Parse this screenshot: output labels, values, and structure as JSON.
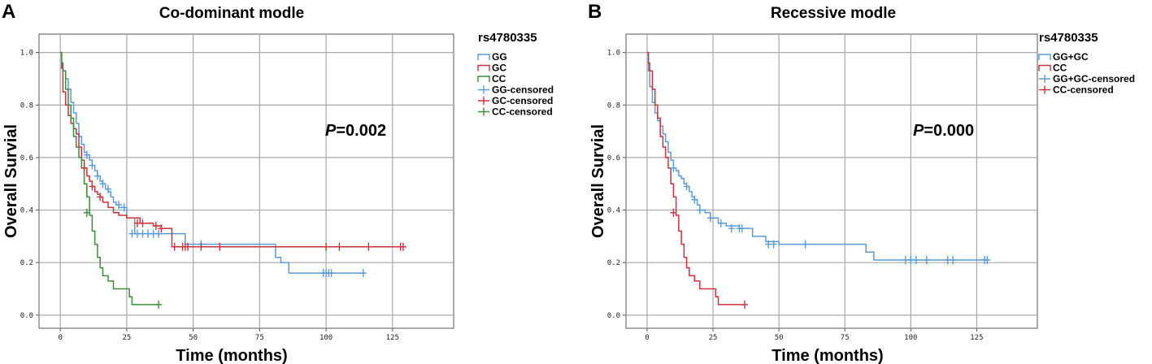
{
  "chart_data": [
    {
      "type": "line",
      "panel_letter": "A",
      "title": "Co-dominant modle",
      "xlabel": "Time (months)",
      "ylabel": "Overall Survial",
      "xlim": [
        -8,
        148
      ],
      "ylim": [
        -0.05,
        1.07
      ],
      "xticks": [
        0,
        25,
        50,
        75,
        100,
        125
      ],
      "xtick_labels": [
        "0",
        "25",
        "50",
        "75",
        "100",
        "125"
      ],
      "yticks": [
        0.0,
        0.2,
        0.4,
        0.6,
        0.8,
        1.0
      ],
      "ytick_labels": [
        "0.0",
        "0.2",
        "0.4",
        "0.6",
        "0.8",
        "1.0"
      ],
      "grid": true,
      "legend_title": "rs4780335",
      "legend_position": "right",
      "annotation": {
        "prefix": "P",
        "text": "=0.002"
      },
      "series": [
        {
          "name": "GG",
          "color": "#5b9bd5",
          "x": [
            0,
            0.5,
            1,
            2,
            3,
            4,
            5,
            6,
            7,
            8,
            9,
            10,
            11,
            12,
            13,
            14,
            15,
            16,
            17,
            18,
            19,
            20,
            21,
            22,
            25,
            28,
            35,
            47,
            60,
            70,
            81,
            83,
            86,
            114
          ],
          "y": [
            1.0,
            0.96,
            0.93,
            0.9,
            0.86,
            0.81,
            0.77,
            0.73,
            0.68,
            0.65,
            0.62,
            0.61,
            0.59,
            0.57,
            0.55,
            0.53,
            0.51,
            0.5,
            0.48,
            0.47,
            0.45,
            0.43,
            0.42,
            0.41,
            0.37,
            0.31,
            0.31,
            0.27,
            0.27,
            0.27,
            0.22,
            0.2,
            0.16,
            0.16
          ]
        },
        {
          "name": "GC",
          "color": "#c8323c",
          "x": [
            0,
            0.5,
            1,
            2,
            3,
            4,
            5,
            6,
            7,
            8,
            9,
            10,
            11,
            12,
            13,
            14,
            15,
            16,
            18,
            20,
            22,
            25,
            30,
            35,
            38,
            42,
            130
          ],
          "y": [
            1.0,
            0.94,
            0.85,
            0.8,
            0.76,
            0.73,
            0.71,
            0.69,
            0.64,
            0.59,
            0.56,
            0.53,
            0.51,
            0.49,
            0.47,
            0.46,
            0.45,
            0.43,
            0.41,
            0.39,
            0.38,
            0.37,
            0.35,
            0.34,
            0.33,
            0.26,
            0.26
          ]
        },
        {
          "name": "CC",
          "color": "#3c8c3c",
          "x": [
            0,
            0.5,
            1,
            2,
            3,
            4,
            5,
            6,
            7,
            8,
            9,
            10,
            11,
            12,
            13,
            14,
            15,
            16,
            18,
            20,
            22,
            26,
            27,
            37
          ],
          "y": [
            1.0,
            0.96,
            0.93,
            0.86,
            0.8,
            0.75,
            0.68,
            0.64,
            0.6,
            0.56,
            0.5,
            0.45,
            0.38,
            0.32,
            0.27,
            0.22,
            0.18,
            0.15,
            0.13,
            0.1,
            0.1,
            0.07,
            0.04,
            0.04
          ]
        },
        {
          "name": "GG-censored",
          "color": "#5b9bd5",
          "marker": "+",
          "x": [
            10,
            12,
            14,
            16,
            18,
            22,
            24,
            27,
            29,
            31,
            33,
            35,
            37,
            53,
            99,
            100,
            101,
            102,
            114
          ],
          "y": [
            0.61,
            0.57,
            0.53,
            0.5,
            0.48,
            0.42,
            0.41,
            0.31,
            0.31,
            0.31,
            0.31,
            0.31,
            0.31,
            0.27,
            0.16,
            0.16,
            0.16,
            0.16,
            0.16
          ]
        },
        {
          "name": "GC-censored",
          "color": "#c8323c",
          "marker": "+",
          "x": [
            9,
            12,
            15,
            29,
            31,
            36,
            38,
            43,
            46,
            47,
            48,
            53,
            60,
            100,
            105,
            116,
            128,
            129
          ],
          "y": [
            0.56,
            0.49,
            0.45,
            0.35,
            0.35,
            0.34,
            0.33,
            0.26,
            0.26,
            0.26,
            0.26,
            0.26,
            0.26,
            0.26,
            0.26,
            0.26,
            0.26,
            0.26
          ]
        },
        {
          "name": "CC-censored",
          "color": "#3c8c3c",
          "marker": "+",
          "x": [
            10,
            37
          ],
          "y": [
            0.39,
            0.04
          ]
        }
      ]
    },
    {
      "type": "line",
      "panel_letter": "B",
      "title": "Recessive modle",
      "xlabel": "Time (months)",
      "ylabel": "Overall Survial",
      "xlim": [
        -8,
        148
      ],
      "ylim": [
        -0.05,
        1.07
      ],
      "xticks": [
        0,
        25,
        50,
        75,
        100,
        125
      ],
      "xtick_labels": [
        "0",
        "25",
        "50",
        "75",
        "100",
        "125"
      ],
      "yticks": [
        0.0,
        0.2,
        0.4,
        0.6,
        0.8,
        1.0
      ],
      "ytick_labels": [
        "0.0",
        "0.2",
        "0.4",
        "0.6",
        "0.8",
        "1.0"
      ],
      "grid": true,
      "legend_title": "rs4780335",
      "legend_position": "right",
      "annotation": {
        "prefix": "P",
        "text": "=0.000"
      },
      "series": [
        {
          "name": "GG+GC",
          "color": "#5b9bd5",
          "x": [
            0,
            0.5,
            1,
            2,
            3,
            4,
            5,
            6,
            7,
            8,
            9,
            10,
            11,
            12,
            13,
            14,
            15,
            16,
            17,
            18,
            19,
            20,
            22,
            24,
            27,
            30,
            35,
            40,
            45,
            50,
            60,
            70,
            80,
            83,
            86,
            130
          ],
          "y": [
            1.0,
            0.93,
            0.87,
            0.81,
            0.77,
            0.74,
            0.72,
            0.69,
            0.66,
            0.62,
            0.59,
            0.56,
            0.55,
            0.53,
            0.52,
            0.5,
            0.49,
            0.47,
            0.45,
            0.44,
            0.42,
            0.4,
            0.39,
            0.37,
            0.35,
            0.34,
            0.33,
            0.3,
            0.28,
            0.27,
            0.27,
            0.27,
            0.27,
            0.24,
            0.21,
            0.21
          ]
        },
        {
          "name": "CC",
          "color": "#c8323c",
          "x": [
            0,
            0.5,
            1,
            2,
            3,
            4,
            5,
            6,
            7,
            8,
            9,
            10,
            11,
            12,
            13,
            14,
            15,
            16,
            18,
            20,
            22,
            26,
            27,
            37
          ],
          "y": [
            1.0,
            0.96,
            0.93,
            0.86,
            0.8,
            0.75,
            0.68,
            0.64,
            0.6,
            0.56,
            0.5,
            0.45,
            0.38,
            0.32,
            0.27,
            0.22,
            0.18,
            0.15,
            0.13,
            0.1,
            0.1,
            0.07,
            0.04,
            0.04
          ]
        },
        {
          "name": "GG+GC-censored",
          "color": "#5b9bd5",
          "marker": "+",
          "x": [
            10,
            15,
            18,
            20,
            24,
            28,
            32,
            35,
            36,
            46,
            48,
            60,
            98,
            100,
            102,
            106,
            114,
            116,
            128,
            129
          ],
          "y": [
            0.56,
            0.49,
            0.44,
            0.4,
            0.37,
            0.35,
            0.33,
            0.33,
            0.33,
            0.27,
            0.27,
            0.27,
            0.21,
            0.21,
            0.21,
            0.21,
            0.21,
            0.21,
            0.21,
            0.21
          ]
        },
        {
          "name": "CC-censored",
          "color": "#c8323c",
          "marker": "+",
          "x": [
            10,
            37
          ],
          "y": [
            0.39,
            0.04
          ]
        }
      ]
    }
  ]
}
